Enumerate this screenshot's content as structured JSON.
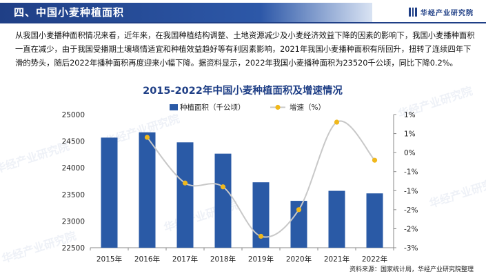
{
  "header": {
    "title": "四、中国小麦种植面积",
    "brand": "华经产业研究院"
  },
  "paragraph": "从我国小麦播种面积情况来看，近年来，在我国种植结构调整、土地资源减少及小麦经济效益下降的因素的影响下，我国小麦播种面积一直在减少，由于我国受播期土壤墒情适宜和种植效益趋好等有利因素影响，2021年我国小麦播种面积有所回升，扭转了连续四年下滑的势头，随后2022年播种面积再度迎来小幅下降。据资料显示，2022年我国小麦播种面积为23520千公顷，同比下降0.2%。",
  "watermark": "华经产业研究院",
  "source": "资料来源：国家统计局，华经产业研究院整理",
  "colors": {
    "brand": "#1f3f86",
    "bar": "#2a5aa6",
    "line": "#c8c8c8",
    "marker": "#f0b81c"
  },
  "chart_data": {
    "type": "bar",
    "title": "2015-2022年中国小麦种植面积及增速情况",
    "categories": [
      "2015年",
      "2016年",
      "2017年",
      "2018年",
      "2019年",
      "2020年",
      "2021年",
      "2022年"
    ],
    "series": [
      {
        "name": "种植面积（千公顷）",
        "type": "bar",
        "axis": "left",
        "values": [
          24567,
          24666,
          24478,
          24266,
          23728,
          23380,
          23568,
          23520
        ]
      },
      {
        "name": "增速（%）",
        "type": "line",
        "axis": "right",
        "values": [
          null,
          0.4,
          -0.8,
          -0.9,
          -2.2,
          -1.5,
          0.8,
          -0.2
        ]
      }
    ],
    "left_axis": {
      "ylim": [
        22500,
        25000
      ],
      "ticks": [
        22500,
        23000,
        23500,
        24000,
        24500,
        25000
      ],
      "tick_labels": [
        "22500",
        "23000",
        "23500",
        "24000",
        "24500",
        "25000"
      ]
    },
    "right_axis": {
      "ylim": [
        -2.5,
        1.0
      ],
      "ticks": [
        -2.5,
        -2.0,
        -1.5,
        -1.0,
        -0.5,
        0.0,
        0.5,
        1.0
      ],
      "tick_labels": [
        "-3%",
        "-2%",
        "-2%",
        "-1%",
        "-1%",
        "0%",
        "1%",
        "1%"
      ]
    },
    "legend": "top-center",
    "grid": false
  }
}
